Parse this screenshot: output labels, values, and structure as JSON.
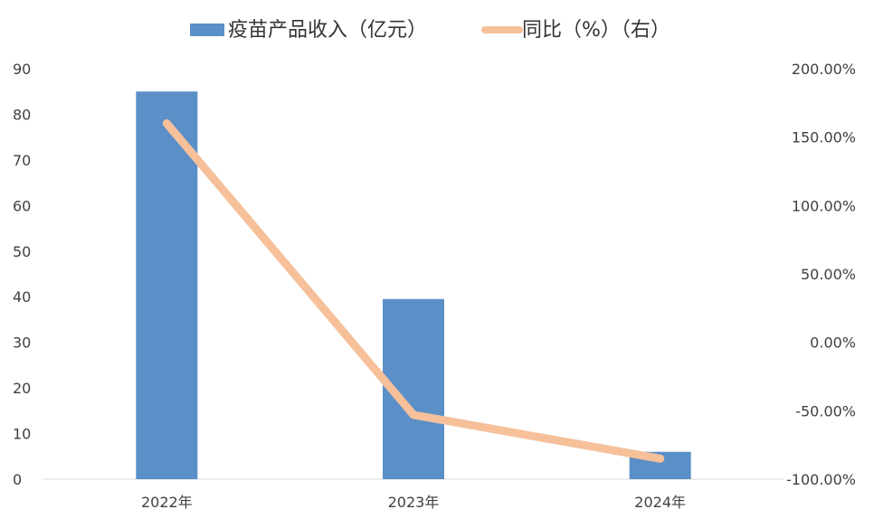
{
  "chart_data": {
    "type": "bar",
    "categories": [
      "2022年",
      "2023年",
      "2024年"
    ],
    "series": [
      {
        "name": "疫苗产品收入（亿元）",
        "type": "bar",
        "axis": "left",
        "color": "#5B8FC7",
        "values": [
          85,
          39.5,
          6
        ]
      },
      {
        "name": "同比（%）（右）",
        "type": "line",
        "axis": "right",
        "color": "#F5C09A",
        "values": [
          160,
          -53,
          -85
        ]
      }
    ],
    "y_left": {
      "lim": [
        0,
        90
      ],
      "ticks": [
        0,
        10,
        20,
        30,
        40,
        50,
        60,
        70,
        80,
        90
      ],
      "tick_labels": [
        "0",
        "10",
        "20",
        "30",
        "40",
        "50",
        "60",
        "70",
        "80",
        "90"
      ]
    },
    "y_right": {
      "lim": [
        -100,
        200
      ],
      "ticks": [
        -100,
        -50,
        0,
        50,
        100,
        150,
        200
      ],
      "tick_labels": [
        "-100.00%",
        "-50.00%",
        "0.00%",
        "50.00%",
        "100.00%",
        "150.00%",
        "200.00%"
      ]
    },
    "legend_position": "top-center",
    "grid": false
  }
}
